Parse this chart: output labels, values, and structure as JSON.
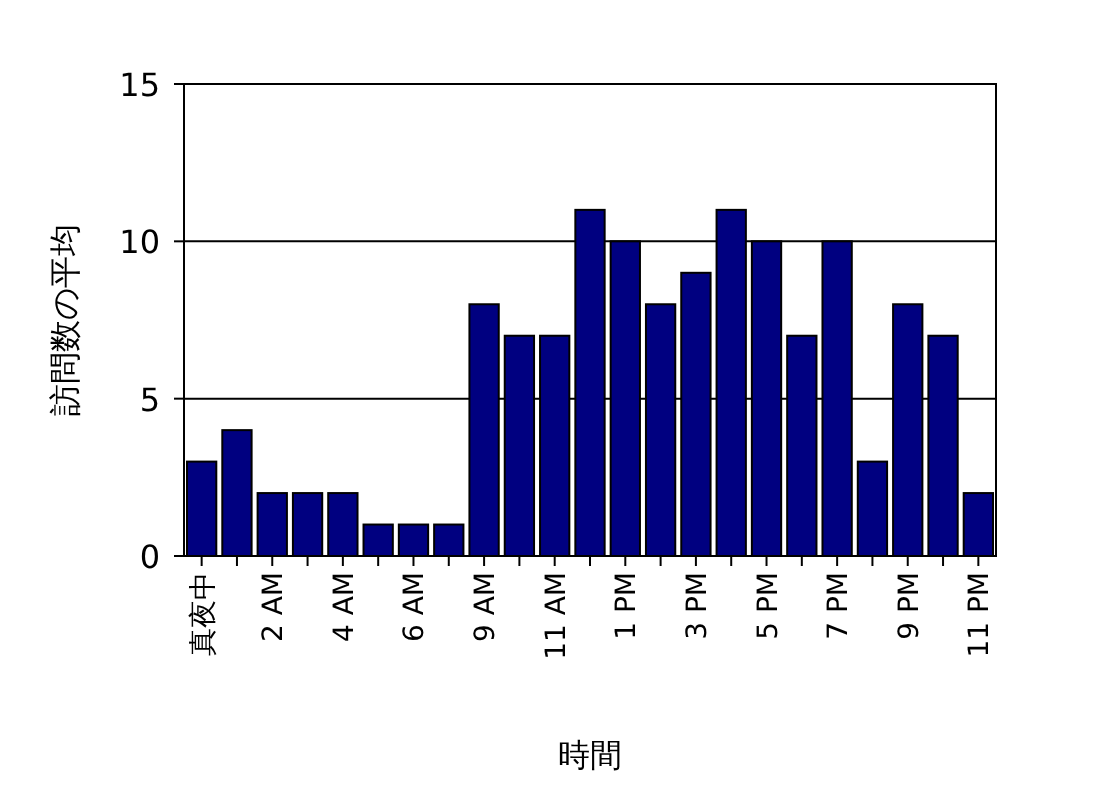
{
  "chart_data": {
    "type": "bar",
    "xlabel": "時間",
    "ylabel": "訪問数の平均",
    "categories": [
      "真夜中",
      null,
      "2 AM",
      null,
      "4 AM",
      null,
      "6 AM",
      null,
      "9 AM",
      null,
      "11 AM",
      null,
      "1 PM",
      null,
      "3 PM",
      null,
      "5 PM",
      null,
      "7 PM",
      null,
      "9 PM",
      null,
      "11 PM"
    ],
    "values": [
      3,
      4,
      2,
      2,
      2,
      1,
      1,
      1,
      8,
      7,
      7,
      11,
      10,
      8,
      9,
      11,
      10,
      7,
      10,
      3,
      8,
      7,
      2
    ],
    "color": "#000080",
    "ylim": [
      0,
      15
    ],
    "yticks": [
      0,
      5,
      10,
      15
    ],
    "grid": "y"
  }
}
